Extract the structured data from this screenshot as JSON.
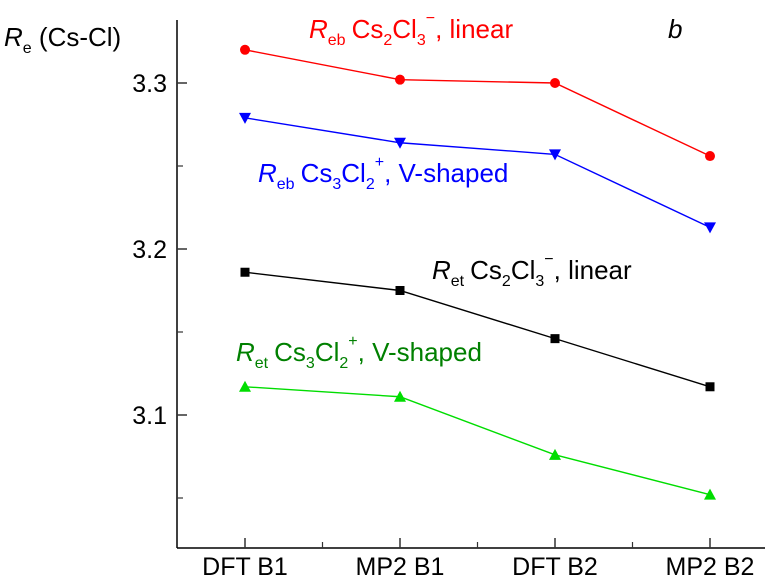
{
  "chart_data": {
    "type": "line",
    "panel_label": "b",
    "ylabel": {
      "main": "R",
      "sub": "e",
      "rest": " (Cs-Cl)"
    },
    "categories": [
      "DFT B1",
      "MP2 B1",
      "DFT B2",
      "MP2 B2"
    ],
    "ylim": [
      3.04,
      3.34
    ],
    "yticks": [
      3.1,
      3.2,
      3.3
    ],
    "grid": false,
    "series": [
      {
        "label": {
          "r": "R",
          "sub": "eb",
          "cs": "Cs",
          "n1": "2",
          "cl": "Cl",
          "n2": "3",
          "charge": "−",
          "rest": ", linear"
        },
        "values": [
          3.32,
          3.302,
          3.3,
          3.256
        ],
        "color": "#ff0000",
        "marker": "circle"
      },
      {
        "label": {
          "r": "R",
          "sub": "eb",
          "cs": "Cs",
          "n1": "3",
          "cl": "Cl",
          "n2": "2",
          "charge": "+",
          "rest": ", V-shaped"
        },
        "values": [
          3.279,
          3.264,
          3.257,
          3.213
        ],
        "color": "#0000ff",
        "marker": "triangle-down"
      },
      {
        "label": {
          "r": "R",
          "sub": "et",
          "cs": "Cs",
          "n1": "2",
          "cl": "Cl",
          "n2": "3",
          "charge": "−",
          "rest": ", linear"
        },
        "values": [
          3.186,
          3.175,
          3.146,
          3.117
        ],
        "color": "#000000",
        "marker": "square"
      },
      {
        "label": {
          "r": "R",
          "sub": "et",
          "cs": "Cs",
          "n1": "3",
          "cl": "Cl",
          "n2": "2",
          "charge": "+",
          "rest": ", V-shaped"
        },
        "values": [
          3.117,
          3.111,
          3.076,
          3.052
        ],
        "color": "#00dd00",
        "label_color": "#008000",
        "marker": "triangle-up"
      }
    ]
  }
}
